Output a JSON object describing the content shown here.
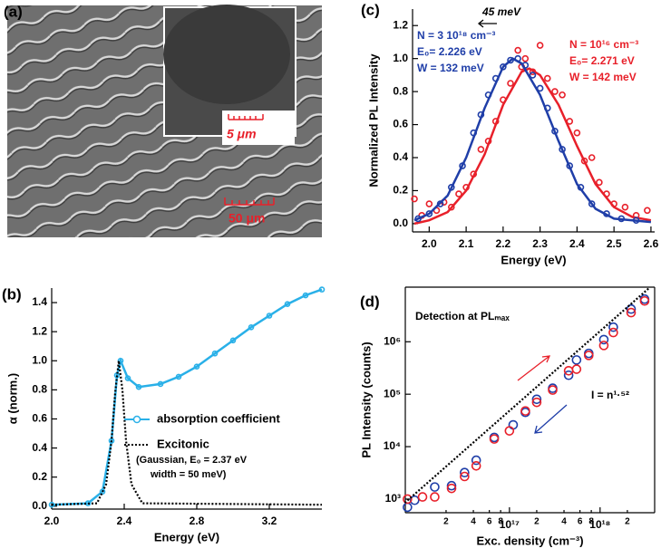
{
  "image_panel": {
    "label": "(a)",
    "inset_scale_bar": "5 μm",
    "scale_bar": "50 μm"
  },
  "chart_data": [
    {
      "type": "line",
      "label": "(b)",
      "xlabel": "Energy (eV)",
      "ylabel": "α (norm.)",
      "xlim": [
        2.0,
        3.49
      ],
      "xticks": [
        {
          "value": 2,
          "label": "2.0"
        },
        2.4,
        2.8,
        3.2
      ],
      "ylim": [
        -0.02,
        1.5
      ],
      "yticks": [
        {
          "value": 0,
          "label": "0.0"
        },
        0.2,
        0.4,
        0.6,
        0.8,
        {
          "value": 1,
          "label": "1.0"
        },
        1.2,
        1.4
      ],
      "legend": "right",
      "series": [
        {
          "name": "absorption coefficient",
          "color": "#29b0e8",
          "style": "line-markers",
          "x": [
            2.0,
            2.2,
            2.28,
            2.33,
            2.36,
            2.38,
            2.42,
            2.48,
            2.6,
            2.7,
            2.8,
            2.9,
            3.0,
            3.1,
            3.2,
            3.3,
            3.4,
            3.49
          ],
          "values": [
            0.01,
            0.02,
            0.1,
            0.45,
            0.9,
            1.0,
            0.88,
            0.82,
            0.84,
            0.89,
            0.96,
            1.05,
            1.14,
            1.23,
            1.31,
            1.39,
            1.45,
            1.49
          ]
        },
        {
          "name": "Excitonic",
          "color": "#000000",
          "style": "dotted",
          "x": [
            2.0,
            2.25,
            2.3,
            2.33,
            2.35,
            2.37,
            2.39,
            2.41,
            2.44,
            2.5,
            3.49
          ],
          "values": [
            0.01,
            0.02,
            0.15,
            0.45,
            0.78,
            1.0,
            0.8,
            0.45,
            0.15,
            0.02,
            0.01
          ]
        }
      ],
      "annotations": [
        {
          "text": "(Gaussian, E₀ = 2.37 eV",
          "color": "#000000"
        },
        {
          "text": "width = 50 meV)",
          "color": "#000000"
        }
      ]
    },
    {
      "type": "scatter",
      "label": "(c)",
      "xlabel": "Energy (eV)",
      "ylabel": "Normalized PL Intensity",
      "xlim": [
        1.955,
        2.61
      ],
      "xticks": [
        {
          "value": 2,
          "label": "2.0"
        },
        2.1,
        2.2,
        2.3,
        2.4,
        2.5,
        2.6
      ],
      "ylim": [
        -0.05,
        1.3
      ],
      "yticks": [
        {
          "value": 0,
          "label": "0.0"
        },
        0.2,
        0.4,
        0.6,
        0.8,
        {
          "value": 1,
          "label": "1.0"
        },
        1.2
      ],
      "series": [
        {
          "color": "#e8202a",
          "style": "markers",
          "x": [
            1.96,
            1.98,
            2.0,
            2.02,
            2.04,
            2.06,
            2.08,
            2.1,
            2.12,
            2.14,
            2.16,
            2.18,
            2.2,
            2.22,
            2.24,
            2.25,
            2.26,
            2.28,
            2.3,
            2.32,
            2.34,
            2.36,
            2.38,
            2.4,
            2.42,
            2.44,
            2.46,
            2.48,
            2.5,
            2.53,
            2.56,
            2.59
          ],
          "values": [
            0.15,
            0.05,
            0.12,
            0.08,
            0.13,
            0.1,
            0.18,
            0.22,
            0.3,
            0.45,
            0.5,
            0.62,
            0.75,
            0.85,
            1.05,
            0.95,
            1.0,
            0.92,
            1.08,
            0.88,
            0.8,
            0.78,
            0.62,
            0.55,
            0.38,
            0.4,
            0.25,
            0.18,
            0.12,
            0.1,
            0.05,
            0.08
          ]
        },
        {
          "color": "#e8202a",
          "style": "line",
          "x": [
            1.96,
            2.0,
            2.05,
            2.1,
            2.15,
            2.2,
            2.25,
            2.271,
            2.3,
            2.35,
            2.4,
            2.45,
            2.5,
            2.55,
            2.6
          ],
          "values": [
            0.0,
            0.02,
            0.07,
            0.2,
            0.42,
            0.72,
            0.92,
            0.94,
            0.9,
            0.72,
            0.47,
            0.24,
            0.1,
            0.04,
            0.02
          ]
        },
        {
          "color": "#1f3ea8",
          "style": "markers",
          "x": [
            1.97,
            2.0,
            2.03,
            2.06,
            2.09,
            2.12,
            2.14,
            2.16,
            2.18,
            2.2,
            2.22,
            2.24,
            2.26,
            2.28,
            2.3,
            2.32,
            2.34,
            2.36,
            2.38,
            2.41,
            2.44,
            2.48,
            2.52,
            2.56
          ],
          "values": [
            0.03,
            0.06,
            0.12,
            0.22,
            0.35,
            0.55,
            0.66,
            0.78,
            0.88,
            0.95,
            0.99,
            1.0,
            0.96,
            0.9,
            0.82,
            0.7,
            0.56,
            0.45,
            0.35,
            0.22,
            0.12,
            0.06,
            0.03,
            0.02
          ]
        },
        {
          "color": "#1f3ea8",
          "style": "line",
          "x": [
            1.96,
            2.0,
            2.05,
            2.1,
            2.15,
            2.2,
            2.226,
            2.25,
            2.3,
            2.35,
            2.4,
            2.45,
            2.5,
            2.6
          ],
          "values": [
            0.02,
            0.06,
            0.17,
            0.4,
            0.7,
            0.95,
            1.0,
            0.97,
            0.78,
            0.5,
            0.24,
            0.09,
            0.03,
            0.01
          ]
        }
      ],
      "annotations": [
        {
          "text": "N = 3 10¹⁸ cm⁻³",
          "color": "#1f3ea8"
        },
        {
          "text": "E₀= 2.226 eV",
          "color": "#1f3ea8"
        },
        {
          "text": "W = 132 meV",
          "color": "#1f3ea8"
        },
        {
          "text": "N = 10¹⁶ cm⁻³",
          "color": "#e8202a"
        },
        {
          "text": "E₀= 2.271 eV",
          "color": "#e8202a"
        },
        {
          "text": "W = 142 meV",
          "color": "#e8202a"
        },
        {
          "text": "45 meV",
          "color": "#000000"
        }
      ]
    },
    {
      "type": "scatter",
      "label": "(d)",
      "xlabel": "Exc. density (cm⁻³)",
      "ylabel": "PL Intensity (counts)",
      "xscale": "log",
      "yscale": "log",
      "xlim": [
        7100000000000000.0,
        4e+18
      ],
      "xticks": [
        {
          "value": 2e+16,
          "label": "2"
        },
        {
          "value": 4e+16,
          "label": "4"
        },
        {
          "value": 6e+16,
          "label": "6"
        },
        {
          "value": 8e+16,
          "label": "8"
        },
        {
          "value": 1e+17,
          "label": "10¹⁷"
        },
        {
          "value": 2e+17,
          "label": "2"
        },
        {
          "value": 4e+17,
          "label": "4"
        },
        {
          "value": 6e+17,
          "label": "6"
        },
        {
          "value": 8e+17,
          "label": "8"
        },
        {
          "value": 1e+18,
          "label": "10¹⁸"
        },
        {
          "value": 2e+18,
          "label": "2"
        }
      ],
      "ylim": [
        550,
        11000000.0
      ],
      "yticks": [
        {
          "value": 1000,
          "label": "10³"
        },
        {
          "value": 10000,
          "label": "10⁴"
        },
        {
          "value": 100000,
          "label": "10⁵"
        },
        {
          "value": 1000000,
          "label": "10⁶"
        }
      ],
      "series": [
        {
          "color": "#1f3ea8",
          "style": "markers",
          "x": [
            7500000000000000.0,
            9000000000000000.0,
            1.5e+16,
            2.3e+16,
            3.2e+16,
            4.3e+16,
            6.8e+16,
            1.1e+17,
            1.5e+17,
            2e+17,
            3e+17,
            4.5e+17,
            5.5e+17,
            7.5e+17,
            1.1e+18,
            1.4e+18,
            2.2e+18,
            3.1e+18
          ],
          "values": [
            700,
            950,
            1700,
            1800,
            3200,
            5500,
            15000,
            26000,
            45000,
            80000,
            130000,
            230000,
            450000,
            600000,
            1100000,
            1900000,
            4200000,
            6500000
          ]
        },
        {
          "color": "#e8202a",
          "style": "markers",
          "x": [
            7500000000000000.0,
            1.1e+16,
            1.5e+16,
            2.3e+16,
            3.2e+16,
            4.3e+16,
            6.8e+16,
            1e+17,
            1.5e+17,
            2e+17,
            3e+17,
            4.5e+17,
            5.5e+17,
            7.5e+17,
            1.1e+18,
            1.4e+18,
            2.2e+18,
            3.1e+18
          ],
          "values": [
            1000,
            1100,
            1100,
            1600,
            2700,
            4300,
            14000,
            20000,
            48000,
            70000,
            120000,
            280000,
            300000,
            550000,
            850000,
            1500000,
            3600000,
            6000000
          ]
        },
        {
          "color": "#000000",
          "style": "dotted",
          "x": [
            7000000000000000.0,
            3.5e+18
          ],
          "values": [
            850,
            10700000.0
          ]
        }
      ],
      "annotations": [
        {
          "text": "Detection at PLₘₐₓ",
          "color": "#000000"
        },
        {
          "text": "I = n¹·⁵²",
          "color": "#000000"
        }
      ]
    }
  ]
}
